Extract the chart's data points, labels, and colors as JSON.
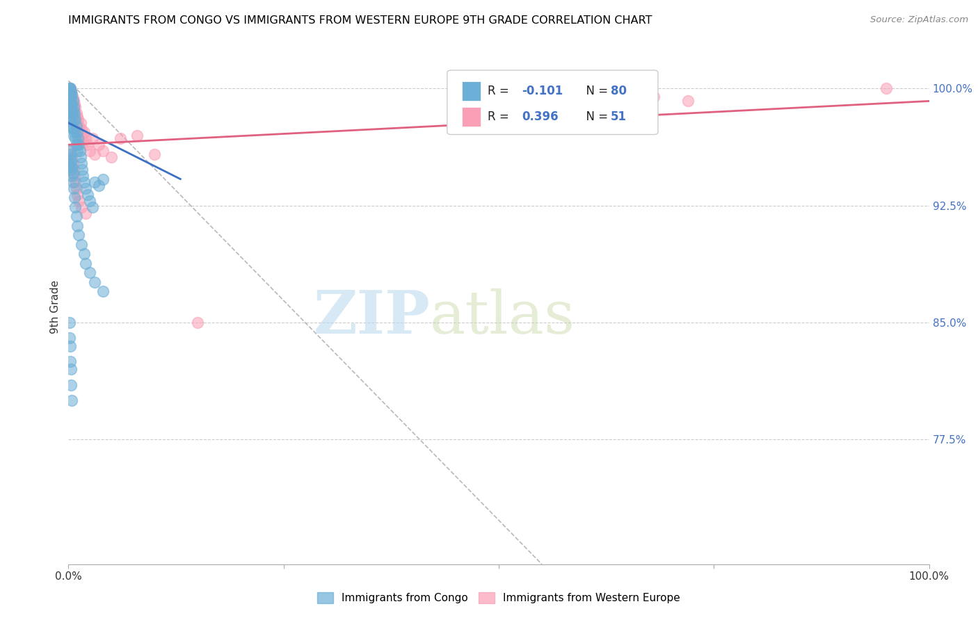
{
  "title": "IMMIGRANTS FROM CONGO VS IMMIGRANTS FROM WESTERN EUROPE 9TH GRADE CORRELATION CHART",
  "source": "Source: ZipAtlas.com",
  "ylabel": "9th Grade",
  "ytick_labels": [
    "100.0%",
    "92.5%",
    "85.0%",
    "77.5%"
  ],
  "ytick_values": [
    1.0,
    0.925,
    0.85,
    0.775
  ],
  "legend_label1": "Immigrants from Congo",
  "legend_label2": "Immigrants from Western Europe",
  "congo_color": "#6baed6",
  "western_color": "#fa9fb5",
  "watermark_zip": "ZIP",
  "watermark_atlas": "atlas",
  "xmin": 0.0,
  "xmax": 1.0,
  "ymin": 0.695,
  "ymax": 1.025,
  "congo_line_x": [
    0.0,
    0.13
  ],
  "congo_line_y": [
    0.978,
    0.942
  ],
  "western_line_x": [
    0.0,
    1.0
  ],
  "western_line_y": [
    0.964,
    0.992
  ],
  "diag_line_x": [
    0.0,
    0.55
  ],
  "diag_line_y": [
    1.005,
    0.695
  ],
  "congo_points_x": [
    0.001,
    0.001,
    0.001,
    0.001,
    0.001,
    0.001,
    0.001,
    0.002,
    0.002,
    0.002,
    0.002,
    0.002,
    0.002,
    0.003,
    0.003,
    0.003,
    0.003,
    0.003,
    0.004,
    0.004,
    0.004,
    0.004,
    0.005,
    0.005,
    0.005,
    0.006,
    0.006,
    0.006,
    0.007,
    0.007,
    0.008,
    0.008,
    0.009,
    0.009,
    0.01,
    0.01,
    0.011,
    0.012,
    0.013,
    0.014,
    0.015,
    0.016,
    0.017,
    0.018,
    0.02,
    0.022,
    0.025,
    0.028,
    0.03,
    0.035,
    0.04,
    0.001,
    0.001,
    0.001,
    0.002,
    0.002,
    0.003,
    0.003,
    0.004,
    0.004,
    0.005,
    0.005,
    0.006,
    0.007,
    0.008,
    0.009,
    0.01,
    0.012,
    0.015,
    0.018,
    0.02,
    0.025,
    0.03,
    0.04,
    0.001,
    0.001,
    0.002,
    0.002,
    0.003,
    0.003,
    0.004
  ],
  "congo_points_y": [
    1.0,
    1.0,
    1.0,
    0.998,
    0.996,
    0.994,
    0.992,
    1.0,
    0.998,
    0.996,
    0.99,
    0.985,
    0.98,
    0.998,
    0.994,
    0.988,
    0.982,
    0.976,
    0.996,
    0.99,
    0.984,
    0.975,
    0.992,
    0.985,
    0.975,
    0.988,
    0.98,
    0.97,
    0.984,
    0.972,
    0.98,
    0.968,
    0.976,
    0.964,
    0.972,
    0.96,
    0.968,
    0.964,
    0.96,
    0.956,
    0.952,
    0.948,
    0.944,
    0.94,
    0.936,
    0.932,
    0.928,
    0.924,
    0.94,
    0.938,
    0.942,
    0.96,
    0.955,
    0.95,
    0.958,
    0.952,
    0.954,
    0.948,
    0.95,
    0.944,
    0.946,
    0.94,
    0.936,
    0.93,
    0.924,
    0.918,
    0.912,
    0.906,
    0.9,
    0.894,
    0.888,
    0.882,
    0.876,
    0.87,
    0.85,
    0.84,
    0.835,
    0.825,
    0.82,
    0.81,
    0.8
  ],
  "western_points_x": [
    0.002,
    0.003,
    0.004,
    0.004,
    0.005,
    0.005,
    0.006,
    0.006,
    0.007,
    0.007,
    0.008,
    0.008,
    0.009,
    0.01,
    0.01,
    0.011,
    0.012,
    0.013,
    0.014,
    0.015,
    0.015,
    0.016,
    0.017,
    0.018,
    0.02,
    0.022,
    0.025,
    0.028,
    0.03,
    0.035,
    0.04,
    0.05,
    0.06,
    0.08,
    0.1,
    0.15,
    0.003,
    0.004,
    0.005,
    0.006,
    0.007,
    0.008,
    0.009,
    0.01,
    0.012,
    0.015,
    0.02,
    0.6,
    0.95,
    0.68,
    0.72
  ],
  "western_points_y": [
    1.0,
    0.998,
    0.996,
    0.992,
    0.994,
    0.988,
    0.992,
    0.986,
    0.99,
    0.982,
    0.988,
    0.978,
    0.984,
    0.982,
    0.974,
    0.98,
    0.976,
    0.972,
    0.978,
    0.974,
    0.968,
    0.97,
    0.966,
    0.972,
    0.968,
    0.964,
    0.96,
    0.968,
    0.958,
    0.964,
    0.96,
    0.956,
    0.968,
    0.97,
    0.958,
    0.85,
    0.96,
    0.956,
    0.952,
    0.948,
    0.944,
    0.94,
    0.936,
    0.932,
    0.928,
    0.924,
    0.92,
    0.996,
    1.0,
    0.995,
    0.992
  ]
}
